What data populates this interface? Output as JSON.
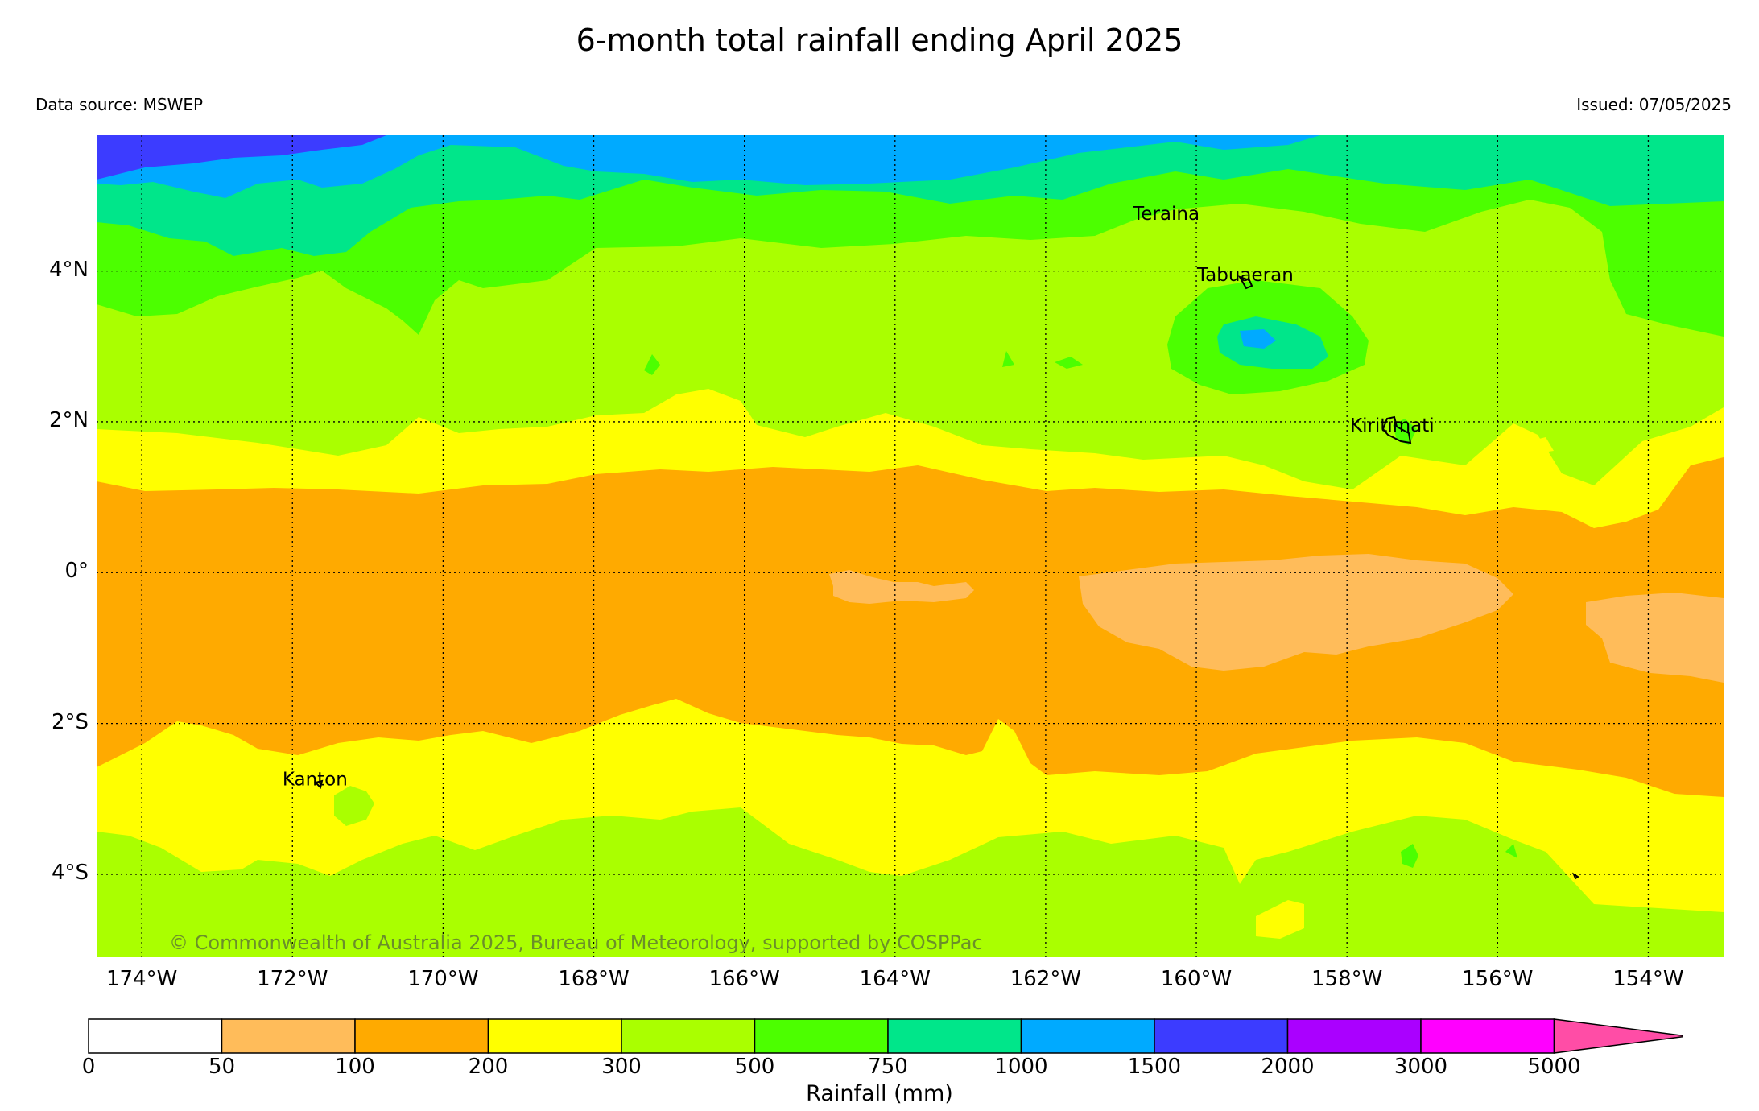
{
  "title": "6-month total rainfall ending April 2025",
  "data_source": "Data source: MSWEP",
  "issued": "Issued: 07/05/2025",
  "copyright": "© Commonwealth of Australia 2025, Bureau of Meteorology, supported by COSPPac",
  "map": {
    "lon_range": [
      -174.6,
      -153.0
    ],
    "lat_range": [
      -5.1,
      5.8
    ],
    "lon_ticks": [
      "174°W",
      "172°W",
      "170°W",
      "168°W",
      "166°W",
      "164°W",
      "162°W",
      "160°W",
      "158°W",
      "156°W",
      "154°W"
    ],
    "lon_values": [
      -174,
      -172,
      -170,
      -168,
      -166,
      -164,
      -162,
      -160,
      -158,
      -156,
      -154
    ],
    "lat_ticks": [
      "4°N",
      "2°N",
      "0°",
      "2°S",
      "4°S"
    ],
    "lat_values": [
      4,
      2,
      0,
      -2,
      -4
    ],
    "grid": "dotted",
    "places": [
      {
        "name": "Teraina",
        "lon": -160.4,
        "lat": 4.68
      },
      {
        "name": "Tabuaeran",
        "lon": -159.35,
        "lat": 3.87
      },
      {
        "name": "Kiritimati",
        "lon": -157.4,
        "lat": 1.87
      },
      {
        "name": "Kanton",
        "lon": -171.7,
        "lat": -2.82
      }
    ]
  },
  "legend": {
    "title": "Rainfall (mm)",
    "ticks": [
      "0",
      "50",
      "100",
      "200",
      "300",
      "500",
      "750",
      "1000",
      "1500",
      "2000",
      "3000",
      "5000"
    ],
    "colors": [
      "#ffffff",
      "#ffbc5a",
      "#ffaa00",
      "#ffff00",
      "#aaff00",
      "#4cff00",
      "#00e68a",
      "#00aaff",
      "#3c3cff",
      "#aa00ff",
      "#ff00ff",
      "#ff4da6"
    ]
  }
}
